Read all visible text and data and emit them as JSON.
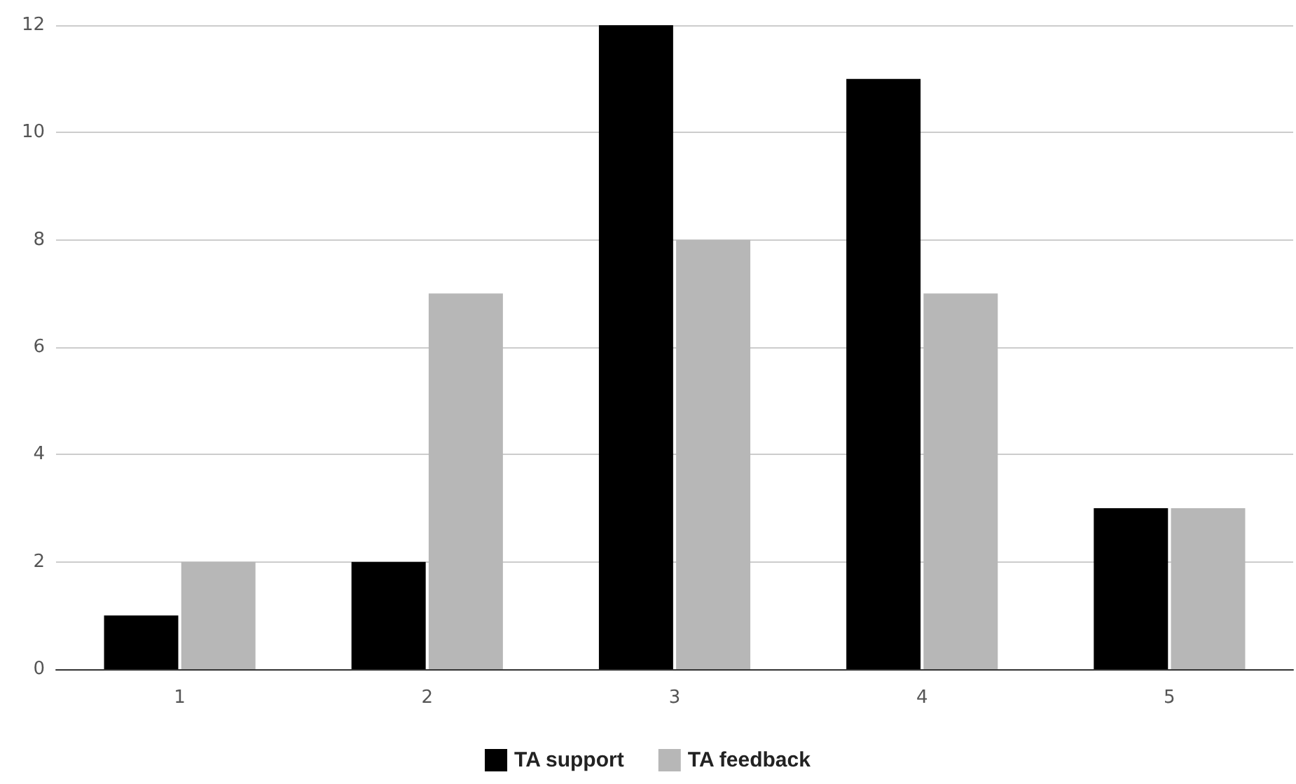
{
  "chart_data": {
    "type": "bar",
    "categories": [
      "1",
      "2",
      "3",
      "4",
      "5"
    ],
    "series": [
      {
        "name": "TA support",
        "color": "#000000",
        "values": [
          1,
          2,
          12,
          11,
          3
        ]
      },
      {
        "name": "TA feedback",
        "color": "#b7b7b7",
        "values": [
          2,
          7,
          8,
          7,
          3
        ]
      }
    ],
    "ylim": [
      0,
      12
    ],
    "yticks": [
      0,
      2,
      4,
      6,
      8,
      10,
      12
    ],
    "grid": "y",
    "legend": "bottom"
  }
}
